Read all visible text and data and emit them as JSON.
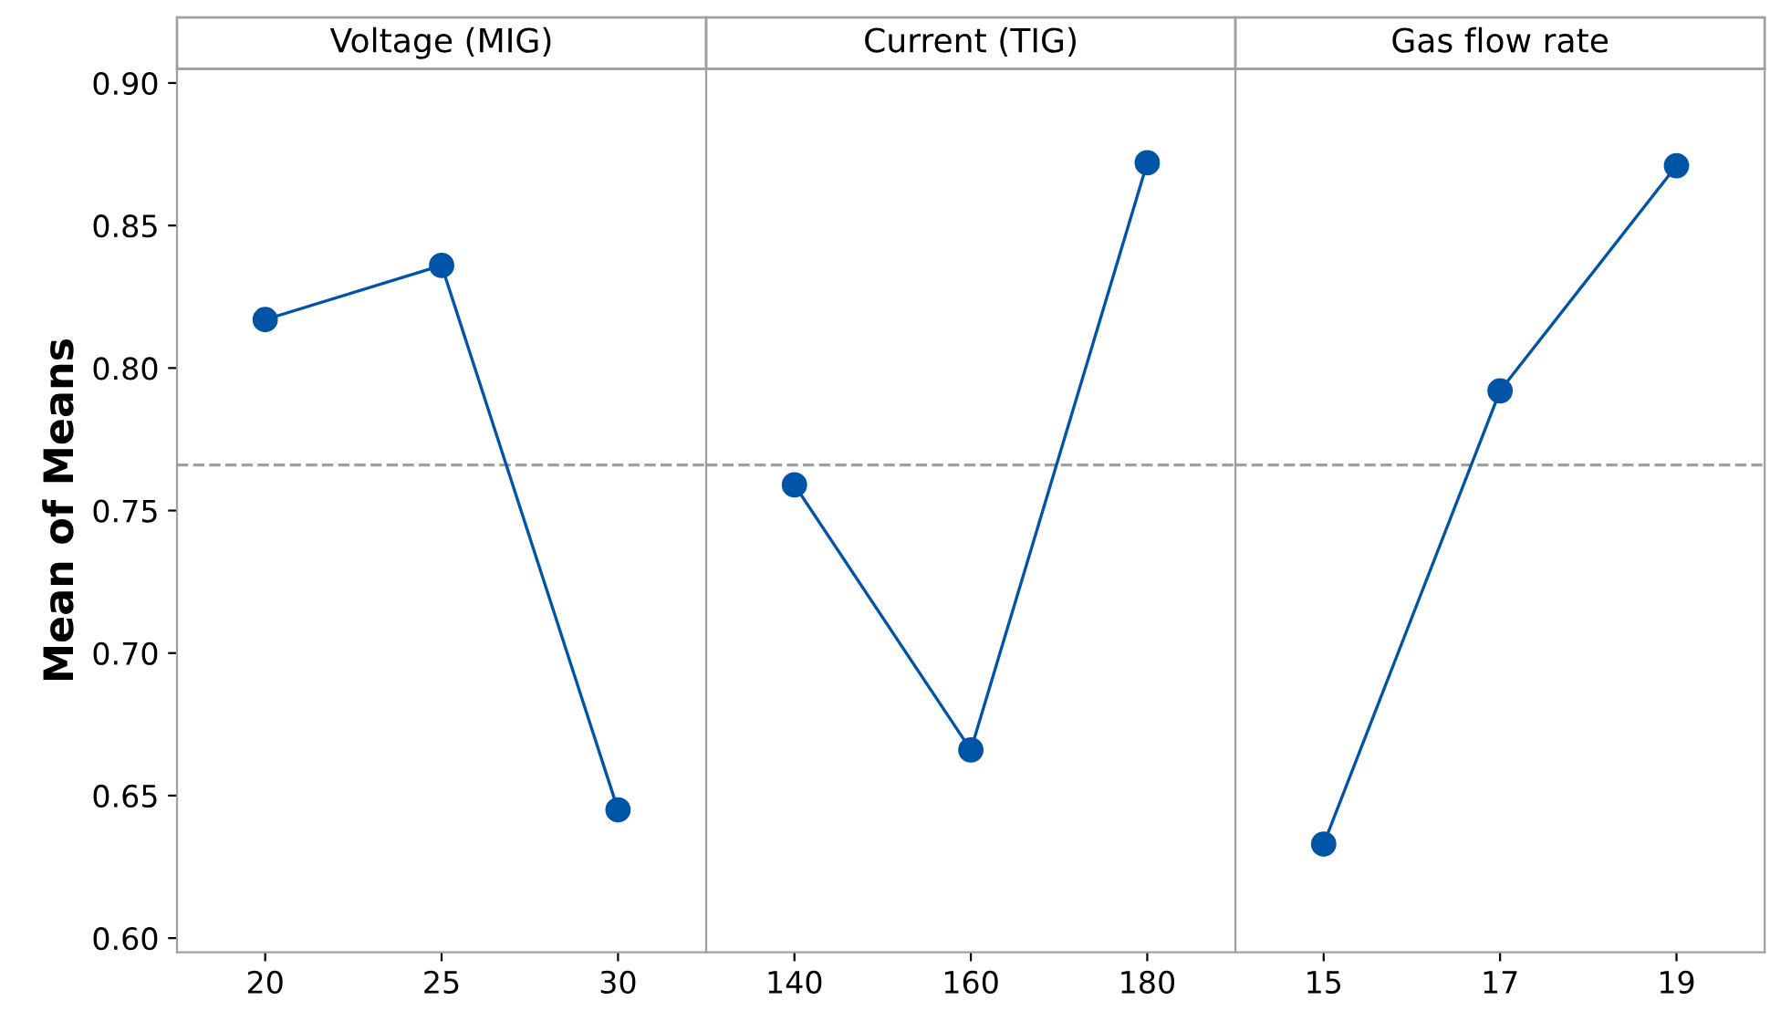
{
  "chart_data": [
    {
      "type": "line",
      "title": "Voltage (MIG)",
      "ylabel": "Mean of Means",
      "categories": [
        "20",
        "25",
        "30"
      ],
      "series": [
        {
          "color": "#0054a6",
          "values": [
            0.817,
            0.836,
            0.645
          ]
        }
      ],
      "ylim": [
        0.595,
        0.905
      ],
      "yticks": [
        {
          "value": 0.6,
          "label": "0.60"
        },
        {
          "value": 0.65,
          "label": "0.65"
        },
        {
          "value": 0.7,
          "label": "0.70"
        },
        {
          "value": 0.75,
          "label": "0.75"
        },
        {
          "value": 0.8,
          "label": "0.80"
        },
        {
          "value": 0.85,
          "label": "0.85"
        },
        {
          "value": 0.9,
          "label": "0.90"
        }
      ],
      "ref_lines": [
        {
          "axis": "y",
          "value": 0.766,
          "color": "#a0a0a0",
          "line_style": "dashed"
        }
      ],
      "marker": "circle",
      "grid": false,
      "legend": false
    },
    {
      "type": "line",
      "title": "Current (TIG)",
      "categories": [
        "140",
        "160",
        "180"
      ],
      "series": [
        {
          "color": "#0054a6",
          "values": [
            0.759,
            0.666,
            0.872
          ]
        }
      ],
      "ylim": [
        0.595,
        0.905
      ],
      "tick_labels": "x",
      "ref_lines": [
        {
          "axis": "y",
          "value": 0.766,
          "color": "#a0a0a0",
          "line_style": "dashed"
        }
      ],
      "marker": "circle",
      "grid": false,
      "legend": false
    },
    {
      "type": "line",
      "title": "Gas flow rate",
      "categories": [
        "15",
        "17",
        "19"
      ],
      "series": [
        {
          "color": "#0054a6",
          "values": [
            0.633,
            0.792,
            0.871
          ]
        }
      ],
      "ylim": [
        0.595,
        0.905
      ],
      "tick_labels": "x",
      "ref_lines": [
        {
          "axis": "y",
          "value": 0.766,
          "color": "#a0a0a0",
          "line_style": "dashed"
        }
      ],
      "marker": "circle",
      "grid": false,
      "legend": false
    }
  ]
}
